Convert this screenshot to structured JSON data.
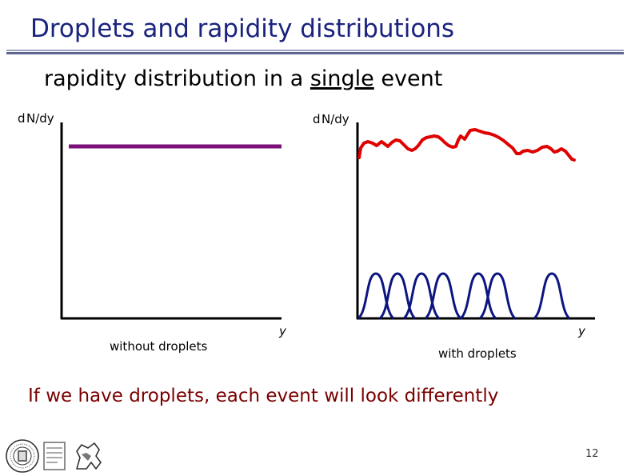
{
  "header": {
    "title": "Droplets and rapidity distributions"
  },
  "subtitle": {
    "before": "rapidity distribution in a ",
    "emph": "single",
    "after": " event"
  },
  "left_panel": {
    "y_label": "d N/dy",
    "x_label": "y",
    "caption": "without droplets",
    "line_color": "#7b1178"
  },
  "right_panel": {
    "y_label": "d N/dy",
    "x_label": "y",
    "caption": "with droplets",
    "sum_color": "#e00000",
    "droplet_color": "#0d1680",
    "droplet_count": 7
  },
  "conclusion": "If we have droplets, each event will look differently",
  "footer": {
    "page_number": "12",
    "logos": [
      "university-seal",
      "lion-crest"
    ]
  }
}
